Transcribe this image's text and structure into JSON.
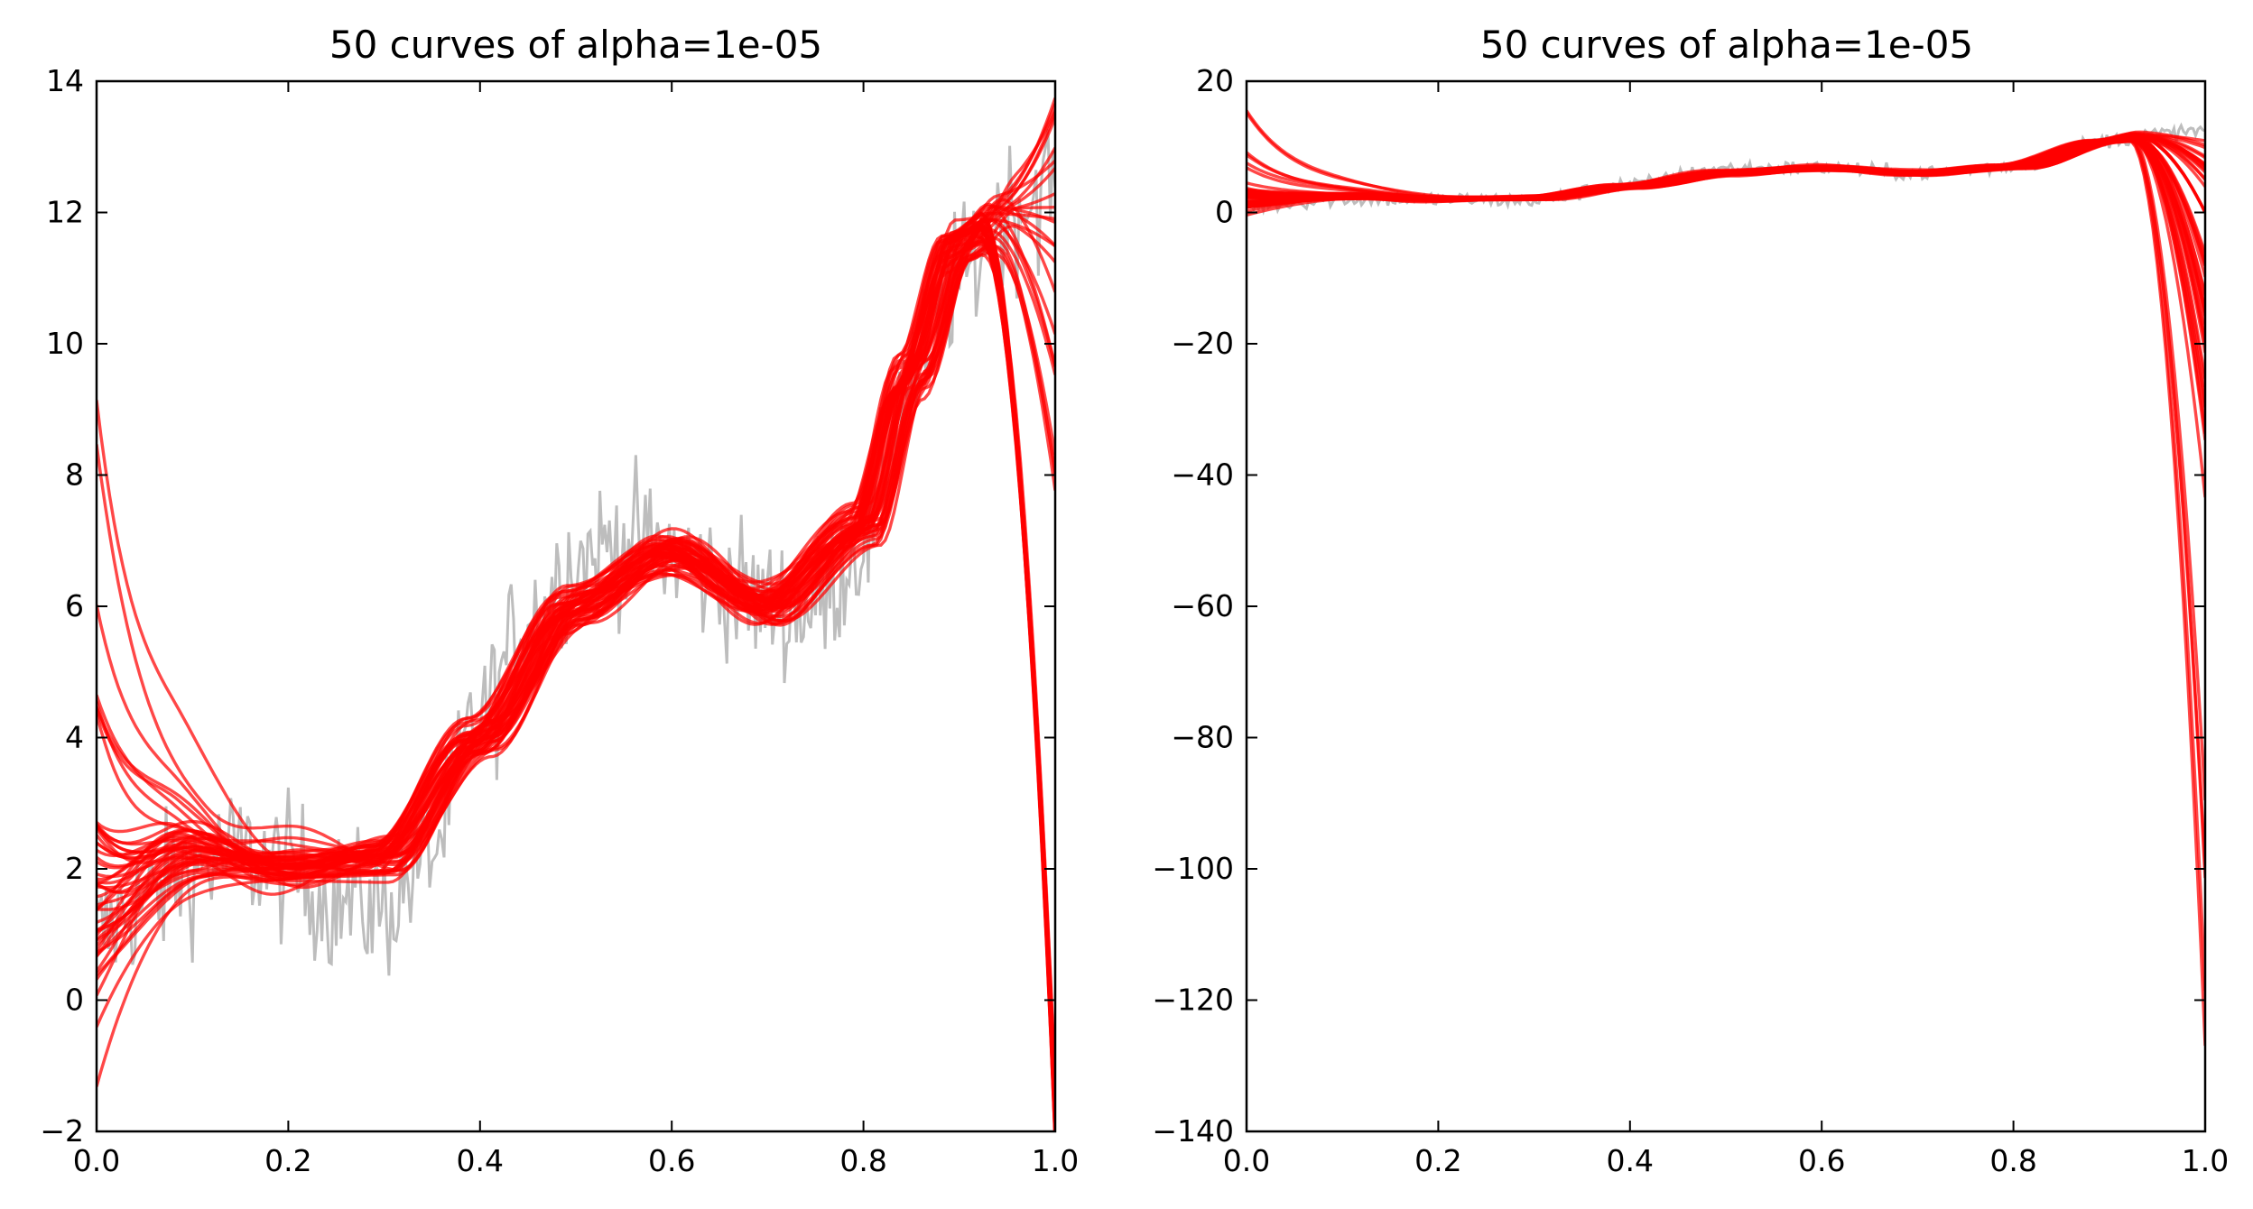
{
  "chart_data": [
    {
      "type": "line",
      "title": "50 curves of alpha=1e-05",
      "xlabel": "",
      "ylabel": "",
      "xlim": [
        0.0,
        1.0
      ],
      "ylim": [
        -2,
        14
      ],
      "x_ticks": [
        "0.0",
        "0.2",
        "0.4",
        "0.6",
        "0.8",
        "1.0"
      ],
      "y_ticks": [
        "−2",
        "0",
        "2",
        "4",
        "6",
        "8",
        "10",
        "12",
        "14"
      ],
      "grid": false,
      "legend": "none",
      "colors": {
        "noisy_data": "#bdbdbd",
        "fitted_curves": "#ff0000"
      },
      "series": [
        {
          "role": "noisy-data",
          "x": [
            0.0,
            0.05,
            0.1,
            0.15,
            0.2,
            0.25,
            0.3,
            0.35,
            0.4,
            0.45,
            0.5,
            0.55,
            0.6,
            0.65,
            0.7,
            0.75,
            0.8,
            0.85,
            0.9,
            0.95,
            1.0
          ],
          "y": [
            1.0,
            1.5,
            2.0,
            2.2,
            2.0,
            1.5,
            1.4,
            2.3,
            4.3,
            5.8,
            6.7,
            7.0,
            6.8,
            6.4,
            6.0,
            6.0,
            7.0,
            9.5,
            11.0,
            12.0,
            12.5
          ]
        },
        {
          "role": "fitted-curve-family",
          "count": 50,
          "x": [
            0.0,
            0.1,
            0.2,
            0.3,
            0.4,
            0.5,
            0.6,
            0.7,
            0.8,
            0.85,
            0.9,
            0.95
          ],
          "y": [
            1.5,
            2.2,
            2.0,
            2.2,
            4.0,
            6.0,
            6.8,
            6.0,
            7.2,
            9.5,
            11.5,
            12.0
          ],
          "end_values_at_x1": [
            -2,
            12.9
          ]
        }
      ]
    },
    {
      "type": "line",
      "title": "50 curves of alpha=1e-05",
      "xlabel": "",
      "ylabel": "",
      "xlim": [
        0.0,
        1.0
      ],
      "ylim": [
        -140,
        20
      ],
      "x_ticks": [
        "0.0",
        "0.2",
        "0.4",
        "0.6",
        "0.8",
        "1.0"
      ],
      "y_ticks": [
        "−140",
        "−120",
        "−100",
        "−80",
        "−60",
        "−40",
        "−20",
        "0",
        "20"
      ],
      "grid": false,
      "legend": "none",
      "colors": {
        "noisy_data": "#bdbdbd",
        "fitted_curves": "#ff0000"
      },
      "series": [
        {
          "role": "noisy-data",
          "x": [
            0.0,
            0.1,
            0.2,
            0.3,
            0.4,
            0.5,
            0.6,
            0.7,
            0.8,
            0.9,
            0.95,
            1.0
          ],
          "y": [
            1.0,
            2.0,
            2.0,
            1.8,
            4.3,
            6.7,
            6.8,
            6.0,
            7.0,
            11.0,
            12.0,
            12.5
          ]
        },
        {
          "role": "fitted-curve-family",
          "count": 50,
          "x": [
            0.0,
            0.1,
            0.2,
            0.3,
            0.4,
            0.5,
            0.6,
            0.7,
            0.8,
            0.9,
            0.95
          ],
          "y": [
            2.0,
            2.5,
            2.0,
            2.2,
            4.0,
            6.0,
            6.8,
            6.0,
            7.0,
            11.0,
            12.0
          ],
          "end_values_at_x1": [
            -125,
            -40,
            -20,
            -10,
            0,
            5,
            10
          ]
        }
      ]
    }
  ]
}
